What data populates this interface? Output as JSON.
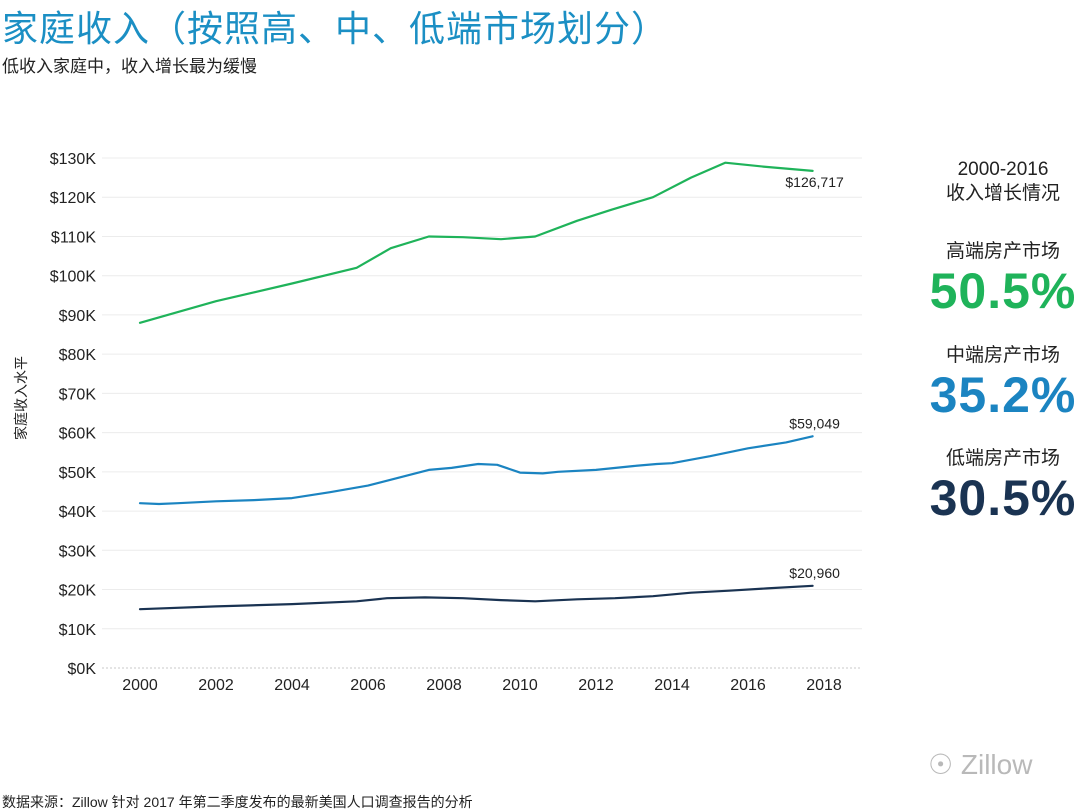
{
  "title": "家庭收入（按照高、中、低端市场划分）",
  "subtitle": "低收入家庭中，收入增长最为缓慢",
  "side_panel": {
    "heading_line1": "2000-2016",
    "heading_line2": "收入增长情况",
    "items": [
      {
        "label": "高端房产市场",
        "value": "50.5%",
        "color": "#1fb35a"
      },
      {
        "label": "中端房产市场",
        "value": "35.2%",
        "color": "#1b84c1"
      },
      {
        "label": "低端房产市场",
        "value": "30.5%",
        "color": "#1a3352"
      }
    ]
  },
  "watermark": "Zillow",
  "footer": "数据来源：Zillow 针对 2017 年第二季度发布的最新美国人口调查报告的分析",
  "chart_data": {
    "type": "line",
    "title": "",
    "xlabel": "",
    "ylabel": "家庭收入水平",
    "xlim": [
      1999,
      2019
    ],
    "ylim": [
      0,
      130000
    ],
    "x_ticks": [
      2000,
      2002,
      2004,
      2006,
      2008,
      2010,
      2012,
      2014,
      2016,
      2018
    ],
    "y_ticks": [
      0,
      10000,
      20000,
      30000,
      40000,
      50000,
      60000,
      70000,
      80000,
      90000,
      100000,
      110000,
      120000,
      130000
    ],
    "y_tick_labels": [
      "$0K",
      "$10K",
      "$20K",
      "$30K",
      "$40K",
      "$50K",
      "$60K",
      "$70K",
      "$80K",
      "$90K",
      "$100K",
      "$110K",
      "$120K",
      "$130K"
    ],
    "grid": true,
    "series": [
      {
        "name": "高端房产市场",
        "color": "#1fb35a",
        "end_label": "$126,717",
        "points": [
          [
            2000,
            88000
          ],
          [
            2002,
            93500
          ],
          [
            2004,
            98000
          ],
          [
            2005.7,
            102000
          ],
          [
            2006.6,
            107000
          ],
          [
            2007.6,
            110000
          ],
          [
            2008.5,
            109800
          ],
          [
            2009.5,
            109300
          ],
          [
            2010.4,
            110000
          ],
          [
            2011.5,
            114000
          ],
          [
            2012.4,
            116800
          ],
          [
            2013.5,
            120000
          ],
          [
            2014.5,
            125000
          ],
          [
            2015.4,
            128800
          ],
          [
            2016.4,
            127800
          ],
          [
            2017.7,
            126717
          ]
        ]
      },
      {
        "name": "中端房产市场",
        "color": "#1b84c1",
        "end_label": "$59,049",
        "points": [
          [
            2000,
            42000
          ],
          [
            2000.5,
            41800
          ],
          [
            2001,
            42000
          ],
          [
            2002,
            42500
          ],
          [
            2003,
            42800
          ],
          [
            2004,
            43300
          ],
          [
            2005,
            44800
          ],
          [
            2006,
            46500
          ],
          [
            2007,
            49000
          ],
          [
            2007.6,
            50500
          ],
          [
            2008.2,
            51000
          ],
          [
            2008.9,
            52000
          ],
          [
            2009.4,
            51800
          ],
          [
            2010,
            49800
          ],
          [
            2010.6,
            49600
          ],
          [
            2011,
            50000
          ],
          [
            2012,
            50500
          ],
          [
            2013,
            51500
          ],
          [
            2013.6,
            52000
          ],
          [
            2014,
            52200
          ],
          [
            2015,
            54000
          ],
          [
            2016,
            56000
          ],
          [
            2017,
            57500
          ],
          [
            2017.7,
            59049
          ]
        ]
      },
      {
        "name": "低端房产市场",
        "color": "#1a3352",
        "end_label": "$20,960",
        "points": [
          [
            2000,
            15000
          ],
          [
            2002,
            15700
          ],
          [
            2004,
            16300
          ],
          [
            2005.7,
            17000
          ],
          [
            2006.5,
            17800
          ],
          [
            2007.5,
            18000
          ],
          [
            2008.5,
            17800
          ],
          [
            2009.5,
            17300
          ],
          [
            2010.4,
            17000
          ],
          [
            2011.5,
            17500
          ],
          [
            2012.5,
            17800
          ],
          [
            2013.5,
            18300
          ],
          [
            2014.5,
            19200
          ],
          [
            2015.5,
            19700
          ],
          [
            2016.5,
            20300
          ],
          [
            2017.7,
            20960
          ]
        ]
      }
    ]
  }
}
